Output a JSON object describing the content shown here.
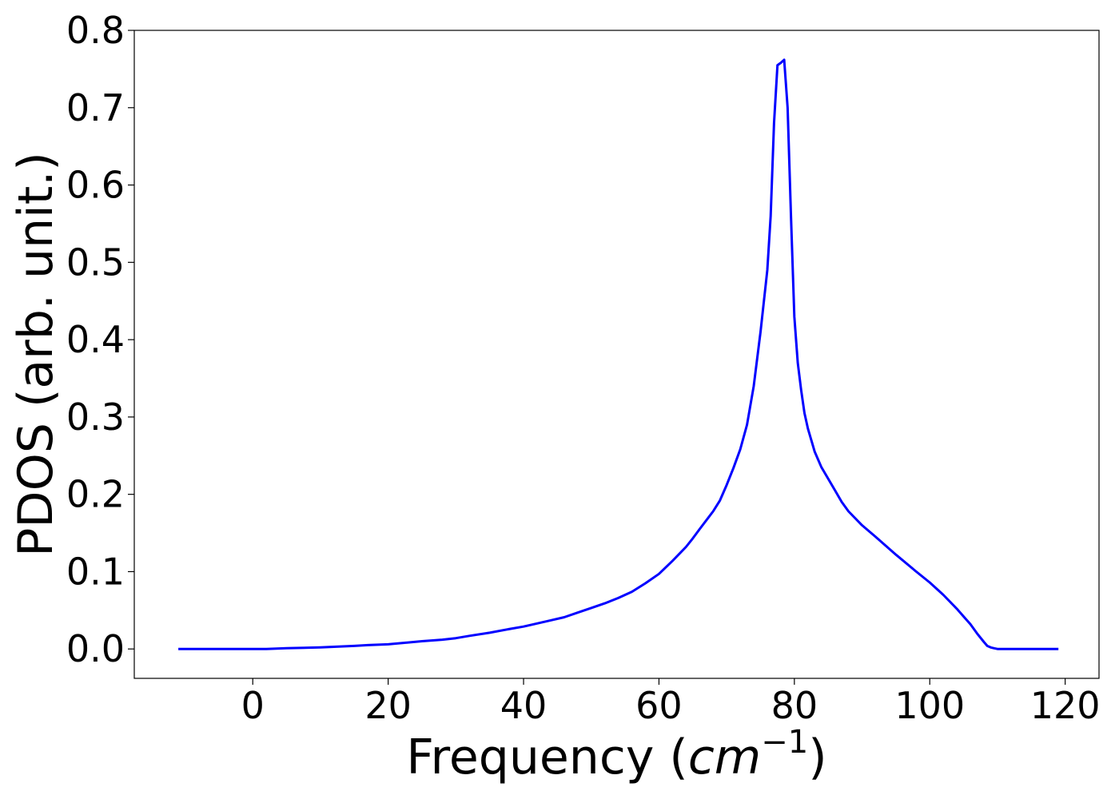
{
  "chart_data": {
    "type": "line",
    "xlabel_prefix": "Frequency (",
    "xlabel_unit": "cm",
    "xlabel_exponent": "−1",
    "xlabel_suffix": ")",
    "ylabel": "PDOS (arb. unit.)",
    "xlim": [
      -17.5,
      125
    ],
    "ylim": [
      -0.038,
      0.8
    ],
    "xticks": [
      0,
      20,
      40,
      60,
      80,
      100,
      120
    ],
    "xtick_labels": [
      "0",
      "20",
      "40",
      "60",
      "80",
      "100",
      "120"
    ],
    "yticks": [
      0.0,
      0.1,
      0.2,
      0.3,
      0.4,
      0.5,
      0.6,
      0.7,
      0.8
    ],
    "ytick_labels": [
      "0.0",
      "0.1",
      "0.2",
      "0.3",
      "0.4",
      "0.5",
      "0.6",
      "0.7",
      "0.8"
    ],
    "grid": false,
    "series": [
      {
        "color": "#0000ff",
        "x": [
          -11,
          0,
          2,
          5,
          10,
          15,
          17,
          20,
          25,
          28,
          30,
          32,
          35,
          38,
          40,
          42,
          44,
          46,
          48,
          50,
          52,
          54,
          56,
          58,
          60,
          62,
          64,
          65,
          66,
          68,
          69,
          70,
          71,
          72,
          73,
          74,
          75,
          76,
          76.5,
          77,
          77.5,
          78,
          78.5,
          79,
          79.5,
          80,
          80.5,
          81,
          81.5,
          82,
          83,
          84,
          85,
          86,
          87,
          88,
          90,
          92,
          95,
          98,
          100,
          102,
          104,
          105,
          106,
          107,
          108,
          108.5,
          109,
          109.5,
          110,
          111,
          113,
          116,
          119
        ],
        "y": [
          0.0,
          0.0,
          0.0,
          0.001,
          0.002,
          0.004,
          0.005,
          0.006,
          0.01,
          0.012,
          0.014,
          0.017,
          0.021,
          0.026,
          0.029,
          0.033,
          0.037,
          0.041,
          0.047,
          0.053,
          0.059,
          0.066,
          0.074,
          0.085,
          0.097,
          0.114,
          0.132,
          0.143,
          0.155,
          0.178,
          0.192,
          0.212,
          0.234,
          0.258,
          0.29,
          0.34,
          0.41,
          0.49,
          0.56,
          0.68,
          0.755,
          0.758,
          0.762,
          0.7,
          0.56,
          0.43,
          0.37,
          0.335,
          0.305,
          0.285,
          0.255,
          0.235,
          0.22,
          0.205,
          0.19,
          0.178,
          0.16,
          0.145,
          0.122,
          0.1,
          0.086,
          0.07,
          0.052,
          0.042,
          0.032,
          0.02,
          0.009,
          0.004,
          0.002,
          0.001,
          0.0,
          0.0,
          0.0,
          0.0,
          0.0
        ]
      }
    ]
  }
}
